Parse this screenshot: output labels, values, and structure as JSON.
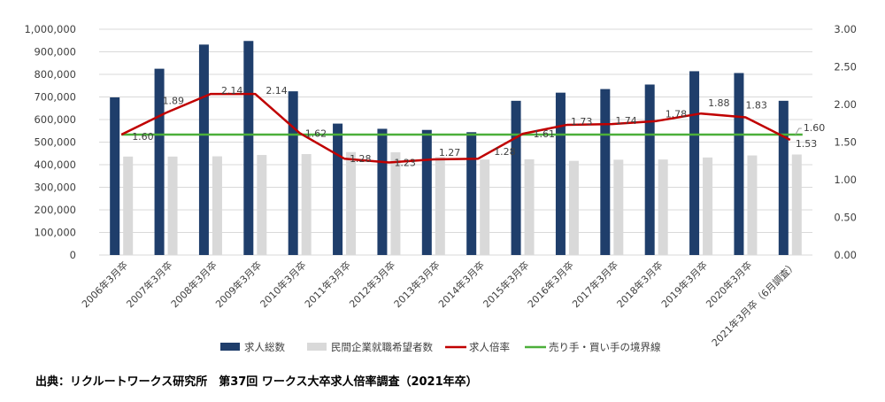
{
  "source_note": "出典：リクルートワークス研究所　第37回 ワークス大卒求人倍率調査（2021年卒）",
  "colors": {
    "job_openings": "#1f3e6b",
    "applicants": "#d9d9d9",
    "ratio_line": "#c00000",
    "boundary_line": "#4caf3a",
    "grid": "#d9d9d9",
    "text": "#404040"
  },
  "chart_data": {
    "type": "bar",
    "categories": [
      "2006年3月卒",
      "2007年3月卒",
      "2008年3月卒",
      "2009年3月卒",
      "2010年3月卒",
      "2011年3月卒",
      "2012年3月卒",
      "2013年3月卒",
      "2014年3月卒",
      "2015年3月卒",
      "2016年3月卒",
      "2017年3月卒",
      "2018年3月卒",
      "2019年3月卒",
      "2020年3月卒",
      "2021年3月卒（6月調査）"
    ],
    "y_left_ticks": [
      "0",
      "100,000",
      "200,000",
      "300,000",
      "400,000",
      "500,000",
      "600,000",
      "700,000",
      "800,000",
      "900,000",
      "1,000,000"
    ],
    "y_right_ticks": [
      "0.00",
      "0.50",
      "1.00",
      "1.50",
      "2.00",
      "2.50",
      "3.00"
    ],
    "ylim_left": [
      0,
      1000000
    ],
    "ylim_right": [
      0,
      3.0
    ],
    "series": [
      {
        "name": "求人総数",
        "type": "bar",
        "axis": "left",
        "values": [
          698000,
          825000,
          932000,
          948000,
          725000,
          582000,
          559000,
          554000,
          544000,
          683000,
          719000,
          735000,
          755000,
          814000,
          806000,
          683000
        ]
      },
      {
        "name": "民間企業就職希望者数",
        "type": "bar",
        "axis": "left",
        "values": [
          436000,
          436000,
          437000,
          443000,
          447000,
          456000,
          455000,
          434000,
          423000,
          424000,
          417000,
          422000,
          423000,
          432000,
          441000,
          445000
        ]
      },
      {
        "name": "求人倍率",
        "type": "line",
        "axis": "right",
        "values": [
          1.6,
          1.89,
          2.14,
          2.14,
          1.62,
          1.28,
          1.23,
          1.27,
          1.28,
          1.61,
          1.73,
          1.74,
          1.78,
          1.88,
          1.83,
          1.53
        ],
        "labels": [
          "1.60",
          "1.89",
          "2.14",
          "2.14",
          "1.62",
          "1.28",
          "1.23",
          "1.27",
          "1.28",
          "1.61",
          "1.73",
          "1.74",
          "1.78",
          "1.88",
          "1.83",
          "1.53"
        ]
      },
      {
        "name": "売り手・買い手の境界線",
        "type": "line",
        "axis": "right",
        "values": [
          1.6,
          1.6,
          1.6,
          1.6,
          1.6,
          1.6,
          1.6,
          1.6,
          1.6,
          1.6,
          1.6,
          1.6,
          1.6,
          1.6,
          1.6,
          1.6
        ],
        "end_label": "1.60"
      }
    ],
    "legend_placement": "bottom-center",
    "grid": true
  }
}
